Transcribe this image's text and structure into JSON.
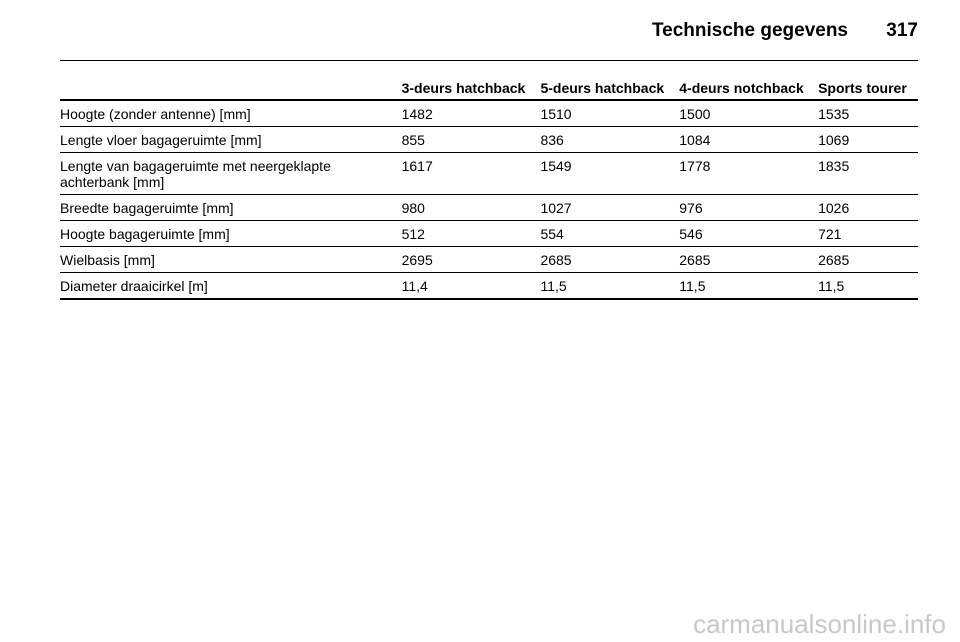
{
  "header": {
    "title": "Technische gegevens",
    "page_number": "317"
  },
  "table": {
    "columns": [
      "3-deurs hatchback",
      "5-deurs hatchback",
      "4-deurs notchback",
      "Sports tourer"
    ],
    "rows": [
      {
        "label": "Hoogte (zonder antenne) [mm]",
        "values": [
          "1482",
          "1510",
          "1500",
          "1535"
        ]
      },
      {
        "label": "Lengte vloer bagageruimte [mm]",
        "values": [
          "855",
          "836",
          "1084",
          "1069"
        ]
      },
      {
        "label": "Lengte van bagageruimte met neergeklapte achterbank [mm]",
        "values": [
          "1617",
          "1549",
          "1778",
          "1835"
        ]
      },
      {
        "label": "Breedte bagageruimte [mm]",
        "values": [
          "980",
          "1027",
          "976",
          "1026"
        ]
      },
      {
        "label": "Hoogte bagageruimte [mm]",
        "values": [
          "512",
          "554",
          "546",
          "721"
        ]
      },
      {
        "label": "Wielbasis [mm]",
        "values": [
          "2695",
          "2685",
          "2685",
          "2685"
        ]
      },
      {
        "label": "Diameter draaicirkel [m]",
        "values": [
          "11,4",
          "11,5",
          "11,5",
          "11,5"
        ]
      }
    ]
  },
  "watermark": "carmanualsonline.info"
}
